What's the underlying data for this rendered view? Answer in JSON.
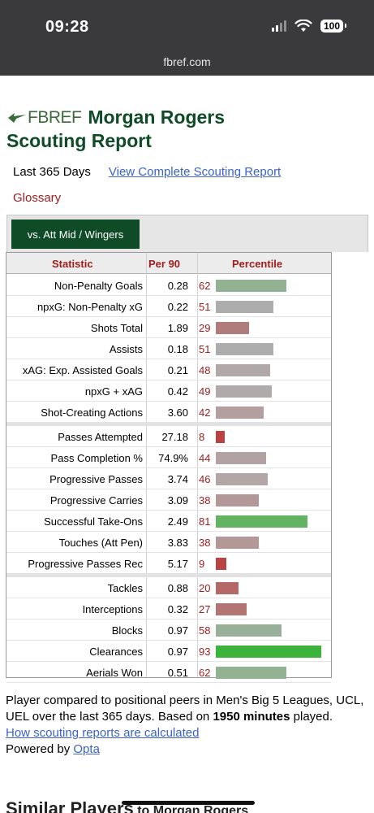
{
  "status_bar": {
    "time": "09:28",
    "battery": "100",
    "url": "fbref.com"
  },
  "header": {
    "logo_text": "FBREF",
    "title_line1": "Morgan Rogers",
    "title_line2": "Scouting Report"
  },
  "filters": {
    "period": "Last 365 Days",
    "complete_report_link": "View Complete Scouting Report",
    "glossary": "Glossary"
  },
  "tabs": [
    {
      "label": "vs. Att Mid / Wingers",
      "active": true
    }
  ],
  "table": {
    "headers": {
      "statistic": "Statistic",
      "per90": "Per 90",
      "percentile": "Percentile"
    },
    "groups": [
      [
        {
          "stat": "Non-Penalty Goals",
          "per90": "0.28",
          "percentile": 62,
          "color": "#93b294"
        },
        {
          "stat": "npxG: Non-Penalty xG",
          "per90": "0.22",
          "percentile": 51,
          "color": "#adadad"
        },
        {
          "stat": "Shots Total",
          "per90": "1.89",
          "percentile": 29,
          "color": "#b07b7b"
        },
        {
          "stat": "Assists",
          "per90": "0.18",
          "percentile": 51,
          "color": "#adadad"
        },
        {
          "stat": "xAG: Exp. Assisted Goals",
          "per90": "0.21",
          "percentile": 48,
          "color": "#b1a9a9"
        },
        {
          "stat": "npxG + xAG",
          "per90": "0.42",
          "percentile": 49,
          "color": "#b0aaaa"
        },
        {
          "stat": "Shot-Creating Actions",
          "per90": "3.60",
          "percentile": 42,
          "color": "#b49e9e"
        }
      ],
      [
        {
          "stat": "Passes Attempted",
          "per90": "27.18",
          "percentile": 8,
          "color": "#b94242"
        },
        {
          "stat": "Pass Completion %",
          "per90": "74.9%",
          "percentile": 44,
          "color": "#b3a2a2"
        },
        {
          "stat": "Progressive Passes",
          "per90": "3.74",
          "percentile": 46,
          "color": "#b2a6a6"
        },
        {
          "stat": "Progressive Carries",
          "per90": "3.09",
          "percentile": 38,
          "color": "#b39898"
        },
        {
          "stat": "Successful Take-Ons",
          "per90": "2.49",
          "percentile": 81,
          "color": "#62b462"
        },
        {
          "stat": "Touches (Att Pen)",
          "per90": "3.83",
          "percentile": 38,
          "color": "#b39898"
        },
        {
          "stat": "Progressive Passes Rec",
          "per90": "5.17",
          "percentile": 9,
          "color": "#b94444"
        }
      ],
      [
        {
          "stat": "Tackles",
          "per90": "0.88",
          "percentile": 20,
          "color": "#b56868"
        },
        {
          "stat": "Interceptions",
          "per90": "0.32",
          "percentile": 27,
          "color": "#b37474"
        },
        {
          "stat": "Blocks",
          "per90": "0.97",
          "percentile": 58,
          "color": "#9aaf9a"
        },
        {
          "stat": "Clearances",
          "per90": "0.97",
          "percentile": 93,
          "color": "#3cb43c"
        },
        {
          "stat": "Aerials Won",
          "per90": "0.51",
          "percentile": 62,
          "color": "#93b294"
        }
      ]
    ]
  },
  "footnote": {
    "text_before": "Player compared to positional peers in Men's Big 5 Leagues, UCL, UEL over the last 365 days. Based on ",
    "minutes": "1950 minutes",
    "text_after": " played.",
    "how_link": "How scouting reports are calculated",
    "powered_by": "Powered by ",
    "opta_link": "Opta"
  },
  "similar": {
    "heading": "Similar Players",
    "sub": " to Morgan Rogers"
  },
  "colors": {
    "fbref_green": "#0e4b26",
    "link_blue": "#3a62c9",
    "stat_red": "#9d1c1c"
  }
}
